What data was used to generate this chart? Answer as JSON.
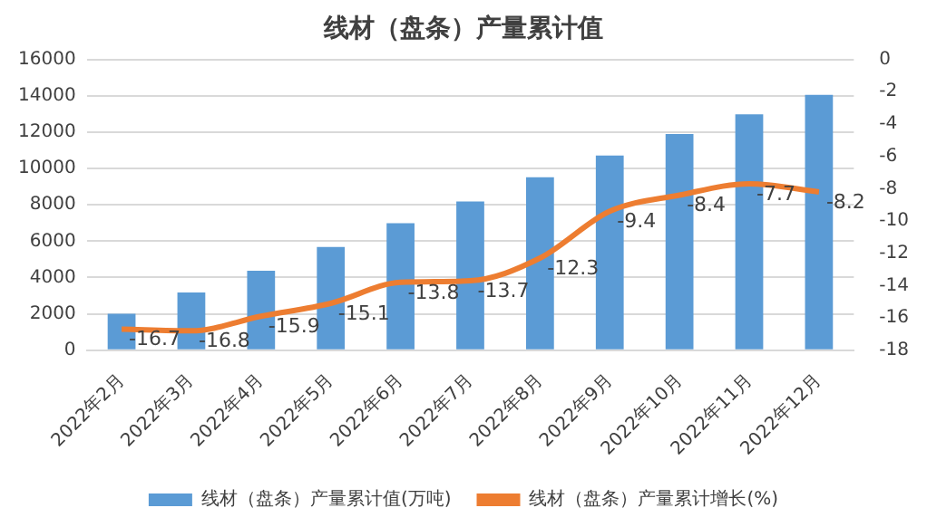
{
  "chart_data": {
    "type": "bar",
    "title": "线材（盘条）产量累计值",
    "categories": [
      "2022年2月",
      "2022年3月",
      "2022年4月",
      "2022年5月",
      "2022年6月",
      "2022年7月",
      "2022年8月",
      "2022年9月",
      "2022年10月",
      "2022年11月",
      "2022年12月"
    ],
    "series": [
      {
        "name": "线材（盘条）产量累计值(万吨)",
        "color": "#5b9bd5",
        "values": [
          2000,
          3180,
          4370,
          5680,
          6990,
          8180,
          9520,
          10710,
          11900,
          12980,
          14050
        ]
      },
      {
        "name": "线材（盘条）产量累计增长(%)",
        "type": "line",
        "axis": "y2",
        "color": "#ed7d31",
        "values": [
          -16.7,
          -16.8,
          -15.9,
          -15.1,
          -13.8,
          -13.7,
          -12.3,
          -9.4,
          -8.4,
          -7.7,
          -8.2
        ],
        "data_labels": true
      }
    ],
    "ylim": [
      0,
      16000
    ],
    "yticks": [
      0,
      2000,
      4000,
      6000,
      8000,
      10000,
      12000,
      14000,
      16000
    ],
    "y2lim": [
      -18,
      0
    ],
    "y2ticks": [
      -18,
      -16,
      -14,
      -12,
      -10,
      -8,
      -6,
      -4,
      -2,
      0
    ],
    "grid": "y",
    "legend": "bottom",
    "marker": "none"
  }
}
